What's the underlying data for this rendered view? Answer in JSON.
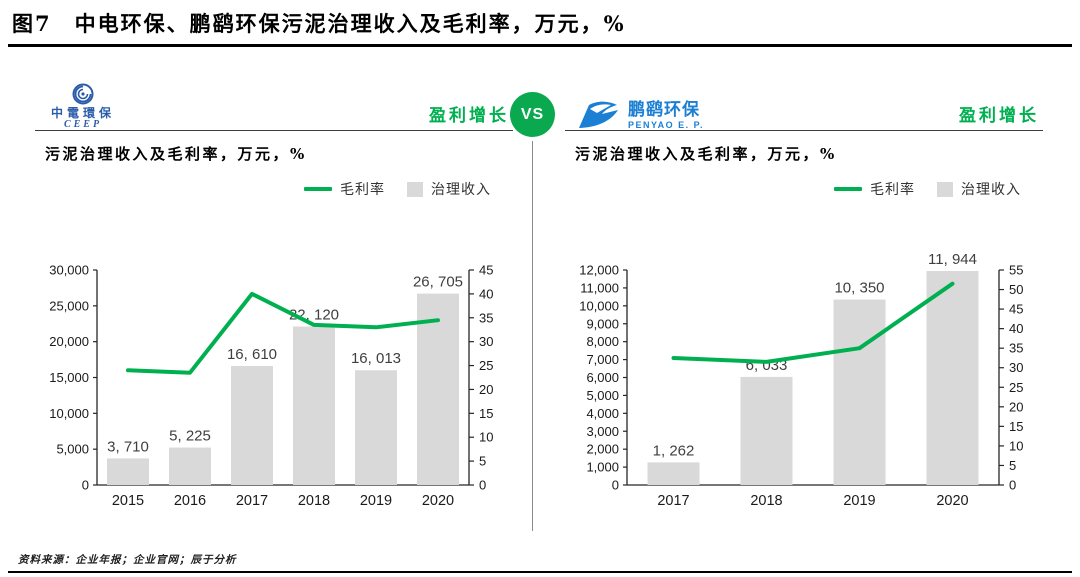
{
  "title": "图7　中电环保、鹏鹞环保污泥治理收入及毛利率，万元，%",
  "footer": "资料来源：企业年报；企业官网；辰于分析",
  "vs_label": "VS",
  "colors": {
    "accent_green": "#00b050",
    "vs_green": "#0aa94f",
    "bar_fill": "#d9d9d9",
    "ceep_blue": "#2a5caa",
    "penyao_blue": "#1b7fd4",
    "axis": "#262626",
    "bar_label": "#3f3f3f"
  },
  "panels": [
    {
      "logo_name": "中電環保",
      "logo_sub": "CEEP",
      "badge": "盈利增长",
      "subtitle": "污泥治理收入及毛利率，万元，%",
      "legend_line": "毛利率",
      "legend_bar": "治理收入"
    },
    {
      "logo_name": "鹏鹞环保",
      "logo_sub": "PENYAO E. P.",
      "badge": "盈利增长",
      "subtitle": "污泥治理收入及毛利率，万元，%",
      "legend_line": "毛利率",
      "legend_bar": "治理收入"
    }
  ],
  "chart_data": [
    {
      "type": "bar",
      "title": "中电环保 污泥治理收入及毛利率",
      "categories": [
        "2015",
        "2016",
        "2017",
        "2018",
        "2019",
        "2020"
      ],
      "series": [
        {
          "name": "治理收入",
          "kind": "bar",
          "axis": "left",
          "values": [
            3710,
            5225,
            16610,
            22120,
            16013,
            26705
          ],
          "labels": [
            "3, 710",
            "5, 225",
            "16, 610",
            "22, 120",
            "16, 013",
            "26, 705"
          ]
        },
        {
          "name": "毛利率",
          "kind": "line",
          "axis": "right",
          "values": [
            24,
            23.5,
            40,
            33.5,
            33,
            34.5
          ]
        }
      ],
      "left_axis": {
        "min": 0,
        "max": 30000,
        "step": 5000
      },
      "right_axis": {
        "min": 0,
        "max": 45,
        "step": 5
      },
      "grid": false,
      "legend_position": "top-right"
    },
    {
      "type": "bar",
      "title": "鹏鹞环保 污泥治理收入及毛利率",
      "categories": [
        "2017",
        "2018",
        "2019",
        "2020"
      ],
      "series": [
        {
          "name": "治理收入",
          "kind": "bar",
          "axis": "left",
          "values": [
            1262,
            6033,
            10350,
            11944
          ],
          "labels": [
            "1, 262",
            "6, 033",
            "10, 350",
            "11, 944"
          ]
        },
        {
          "name": "毛利率",
          "kind": "line",
          "axis": "right",
          "values": [
            32.5,
            31.5,
            35,
            51.5
          ]
        }
      ],
      "left_axis": {
        "min": 0,
        "max": 12000,
        "step": 1000
      },
      "right_axis": {
        "min": 0,
        "max": 55,
        "step": 5
      },
      "grid": false,
      "legend_position": "top-right"
    }
  ]
}
